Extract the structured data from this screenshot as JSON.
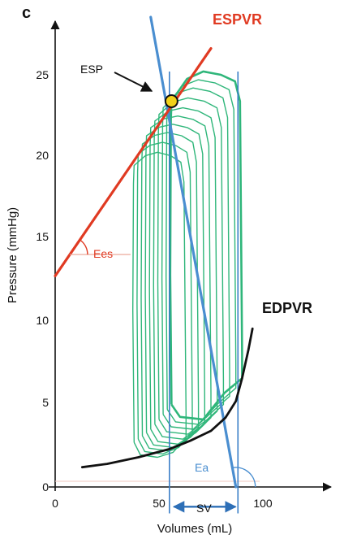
{
  "chart_data": {
    "type": "line",
    "panel_letter": "c",
    "xlabel": "Volumes (mL)",
    "ylabel": "Pressure (mmHg)",
    "xlim": [
      0,
      135
    ],
    "ylim": [
      0,
      27.5
    ],
    "x_ticks": [
      0,
      50,
      100
    ],
    "y_ticks": [
      0,
      5,
      10,
      15,
      20,
      25
    ],
    "grid": false,
    "colors": {
      "espvr": "#e03a22",
      "edpvr": "#111111",
      "ea": "#4a8ed0",
      "loops": "#2fb67a",
      "esp_point": "#f2d21a"
    },
    "annotations": {
      "espvr": "ESPVR",
      "edpvr": "EDPVR",
      "esp": "ESP",
      "ees": "Ees",
      "ea": "Ea",
      "sv": "SV"
    },
    "espvr_line": {
      "x": [
        0,
        75
      ],
      "y": [
        12.8,
        26.6
      ]
    },
    "ea_line": {
      "x": [
        46,
        87
      ],
      "y": [
        28.5,
        0
      ]
    },
    "edpvr_curve": {
      "x": [
        13,
        25,
        40,
        55,
        65,
        75,
        82,
        87,
        90,
        93,
        95
      ],
      "y": [
        1.2,
        1.4,
        1.8,
        2.3,
        2.8,
        3.4,
        4.2,
        5.2,
        6.6,
        8.3,
        9.6
      ]
    },
    "esp_point": {
      "x": 56,
      "y": 23.4
    },
    "ees_angle_vertex": {
      "x": 7,
      "y": 14.1
    },
    "ea_angle_vertex": {
      "x": 87,
      "y": 0
    },
    "sv_bracket": {
      "x_start": 56,
      "x_end": 88,
      "y": -1.2
    },
    "stroke_volume_guides": {
      "x": [
        55,
        88
      ]
    },
    "pv_loops": [
      {
        "vmin": 56,
        "vmax": 90,
        "pes": 23.4,
        "pmax": 25.2,
        "ped": 6.6,
        "pmin": 4.1
      },
      {
        "vmin": 54,
        "vmax": 87,
        "pes": 23.2,
        "pmax": 24.7,
        "ped": 6.0,
        "pmin": 3.8
      },
      {
        "vmin": 52,
        "vmax": 84,
        "pes": 23.0,
        "pmax": 24.2,
        "ped": 5.5,
        "pmin": 3.5
      },
      {
        "vmin": 50,
        "vmax": 81,
        "pes": 22.6,
        "pmax": 23.6,
        "ped": 5.0,
        "pmin": 3.2
      },
      {
        "vmin": 48,
        "vmax": 78,
        "pes": 22.2,
        "pmax": 23.0,
        "ped": 4.6,
        "pmin": 2.9
      },
      {
        "vmin": 46,
        "vmax": 75,
        "pes": 21.8,
        "pmax": 22.5,
        "ped": 4.2,
        "pmin": 2.6
      },
      {
        "vmin": 44,
        "vmax": 72,
        "pes": 21.3,
        "pmax": 22.0,
        "ped": 3.9,
        "pmin": 2.4
      },
      {
        "vmin": 42,
        "vmax": 69,
        "pes": 20.8,
        "pmax": 21.5,
        "ped": 3.6,
        "pmin": 2.2
      },
      {
        "vmin": 40,
        "vmax": 66,
        "pes": 20.2,
        "pmax": 20.9,
        "ped": 3.3,
        "pmin": 2.0
      },
      {
        "vmin": 38,
        "vmax": 63,
        "pes": 19.5,
        "pmax": 20.3,
        "ped": 3.0,
        "pmin": 1.8
      }
    ]
  }
}
